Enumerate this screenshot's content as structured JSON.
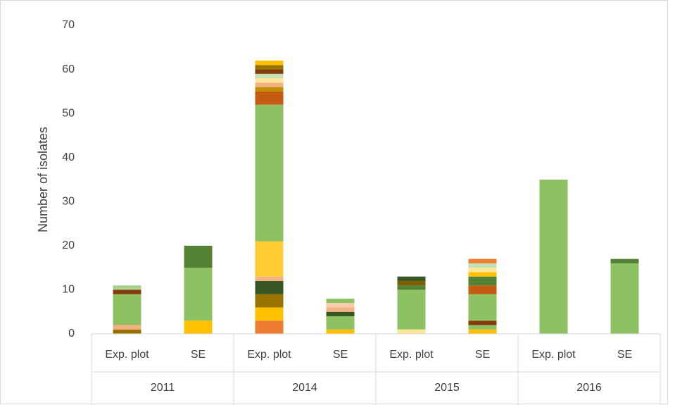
{
  "chart_data": {
    "type": "stacked_bar",
    "y_axis_label": "Number of isolates",
    "categories": [
      "Exp.  plot",
      "SE",
      "Exp.  plot",
      "SE",
      "Exp.  plot",
      "SE",
      "Exp.  plot",
      "SE"
    ],
    "groups": [
      "2011",
      "2014",
      "2015",
      "2016"
    ],
    "ylim": [
      0,
      70
    ],
    "yticks": [
      0,
      10,
      20,
      30,
      40,
      50,
      60,
      70
    ],
    "grid": false,
    "stacks": [
      [
        {
          "color": "#997300",
          "value": 1
        },
        {
          "color": "#f4b183",
          "value": 1
        },
        {
          "color": "#8dc162",
          "value": 7
        },
        {
          "color": "#843c0c",
          "value": 1
        },
        {
          "color": "#a9d18e",
          "value": 1
        }
      ],
      [
        {
          "color": "#ffc000",
          "value": 3
        },
        {
          "color": "#8dc162",
          "value": 12
        },
        {
          "color": "#548235",
          "value": 5
        }
      ],
      [
        {
          "color": "#ed7d31",
          "value": 3
        },
        {
          "color": "#ffc000",
          "value": 3
        },
        {
          "color": "#997300",
          "value": 3
        },
        {
          "color": "#375623",
          "value": 3
        },
        {
          "color": "#f4b183",
          "value": 1
        },
        {
          "color": "#ffcd33",
          "value": 8
        },
        {
          "color": "#8dc162",
          "value": 31
        },
        {
          "color": "#c55a11",
          "value": 3
        },
        {
          "color": "#bf9000",
          "value": 1
        },
        {
          "color": "#f4b183",
          "value": 1
        },
        {
          "color": "#ffe699",
          "value": 1
        },
        {
          "color": "#c5e0b4",
          "value": 1
        },
        {
          "color": "#843c0c",
          "value": 1
        },
        {
          "color": "#997300",
          "value": 1
        },
        {
          "color": "#ffc000",
          "value": 1
        }
      ],
      [
        {
          "color": "#ffc000",
          "value": 1
        },
        {
          "color": "#8dc162",
          "value": 3
        },
        {
          "color": "#375623",
          "value": 1
        },
        {
          "color": "#f4b183",
          "value": 1
        },
        {
          "color": "#f8cbad",
          "value": 1
        },
        {
          "color": "#8dc162",
          "value": 1
        }
      ],
      [
        {
          "color": "#ffe699",
          "value": 1
        },
        {
          "color": "#8dc162",
          "value": 9
        },
        {
          "color": "#548235",
          "value": 1
        },
        {
          "color": "#806000",
          "value": 1
        },
        {
          "color": "#375623",
          "value": 1
        }
      ],
      [
        {
          "color": "#ffc000",
          "value": 1
        },
        {
          "color": "#8dc162",
          "value": 1
        },
        {
          "color": "#843c0c",
          "value": 1
        },
        {
          "color": "#8dc162",
          "value": 6
        },
        {
          "color": "#c55a11",
          "value": 2
        },
        {
          "color": "#548235",
          "value": 2
        },
        {
          "color": "#ffc000",
          "value": 1
        },
        {
          "color": "#ffe699",
          "value": 1
        },
        {
          "color": "#c5e0b4",
          "value": 1
        },
        {
          "color": "#ed7d31",
          "value": 1
        }
      ],
      [
        {
          "color": "#8dc162",
          "value": 35
        }
      ],
      [
        {
          "color": "#8dc162",
          "value": 16
        },
        {
          "color": "#548235",
          "value": 1
        }
      ]
    ]
  }
}
